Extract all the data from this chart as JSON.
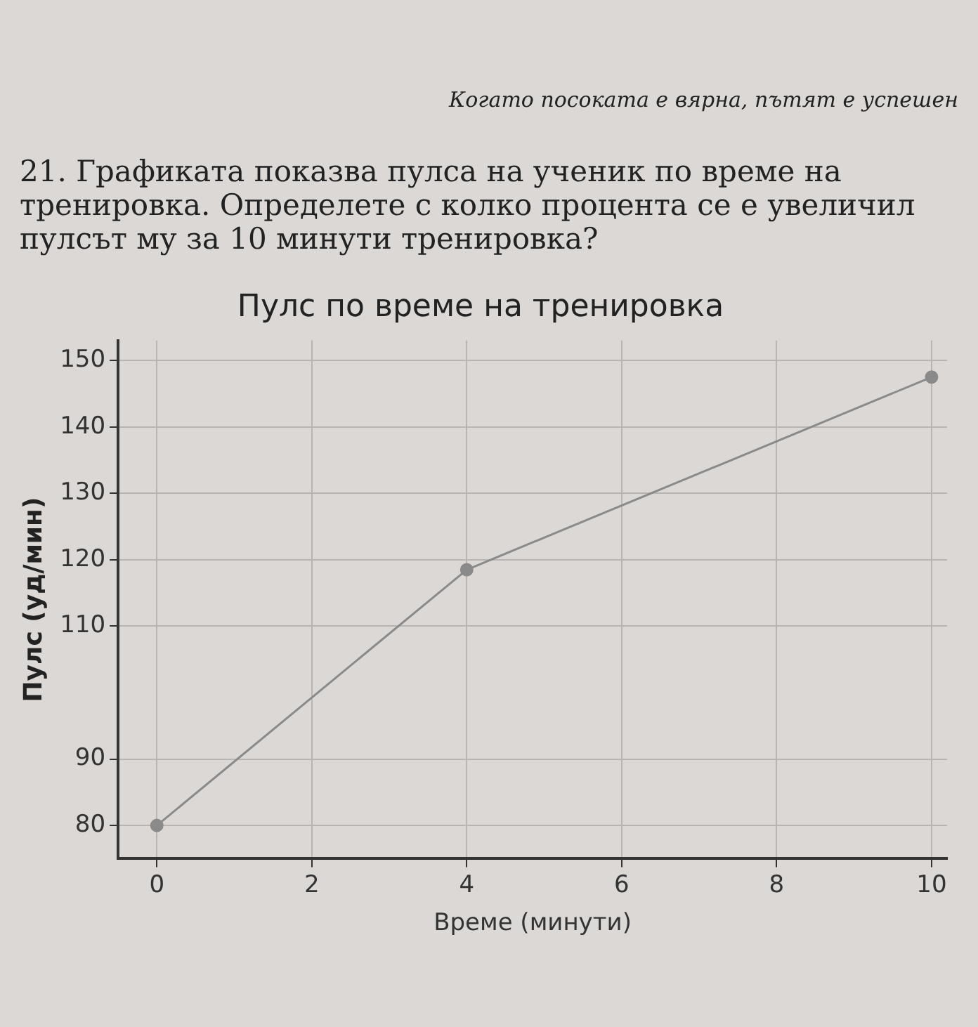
{
  "chart_data": {
    "type": "line",
    "title": "Пулс по време на тренировка",
    "xlabel": "Време (минути)",
    "ylabel": "Пулс (уд/мин)",
    "annotations": [
      "Когато посоката е вярна, пътят е успешен",
      "21. Графиката показва пулса на ученик по време на тренировка. Определете с колко процента се е увеличил пулсът му за 10 минути тренировка?"
    ],
    "x": [
      0,
      4,
      10
    ],
    "series": [
      {
        "color": "#8a8a8a",
        "values": [
          80,
          118.5,
          147.5
        ]
      }
    ],
    "xlim": [
      -0.5,
      10.2
    ],
    "xticks": [
      0,
      2,
      4,
      6,
      8,
      10
    ],
    "ylim": [
      75,
      153
    ],
    "yticks": [
      80,
      90,
      110,
      120,
      130,
      140,
      150
    ],
    "grid": true,
    "legend": false,
    "marker": "circle",
    "line_style": "solid"
  }
}
